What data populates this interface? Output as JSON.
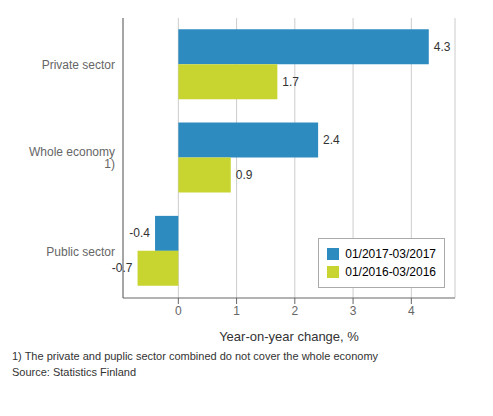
{
  "chart_data": {
    "type": "bar",
    "orientation": "horizontal",
    "categories": [
      "Public sector",
      "Whole economy 1)",
      "Private sector"
    ],
    "series": [
      {
        "name": "01/2017-03/2017",
        "color": "#2E8BC0",
        "values": [
          -0.4,
          2.4,
          4.3
        ]
      },
      {
        "name": "01/2016-03/2016",
        "color": "#C8D430",
        "values": [
          -0.7,
          0.9,
          1.7
        ]
      }
    ],
    "xlabel": "Year-on-year change, %",
    "xlim": [
      -0.95,
      4.75
    ],
    "xticks": [
      0,
      1,
      2,
      3,
      4
    ],
    "grid": true,
    "legend": "lower right",
    "data_labels": true,
    "annotations": [
      "1) The private and puplic sector combined do not cover the whole economy",
      "Source: Statistics Finland"
    ]
  }
}
